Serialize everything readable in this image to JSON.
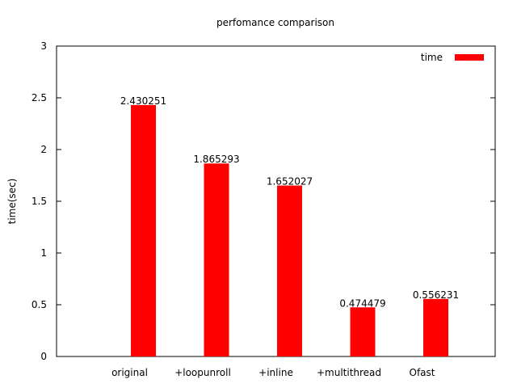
{
  "chart_data": {
    "type": "bar",
    "title": "perfomance comparison",
    "y_label": "time(sec)",
    "categories": [
      "original",
      "+loopunroll",
      "+inline",
      "+multithread",
      "Ofast"
    ],
    "series": [
      {
        "name": "time",
        "color": "#ff0000",
        "values": [
          2.430251,
          1.865293,
          1.652027,
          0.474479,
          0.556231
        ]
      }
    ],
    "ylim": [
      0,
      3
    ],
    "yticks": [
      0,
      0.5,
      1,
      1.5,
      2,
      2.5,
      3
    ],
    "legend": "top-right",
    "value_labels_shown": true
  }
}
